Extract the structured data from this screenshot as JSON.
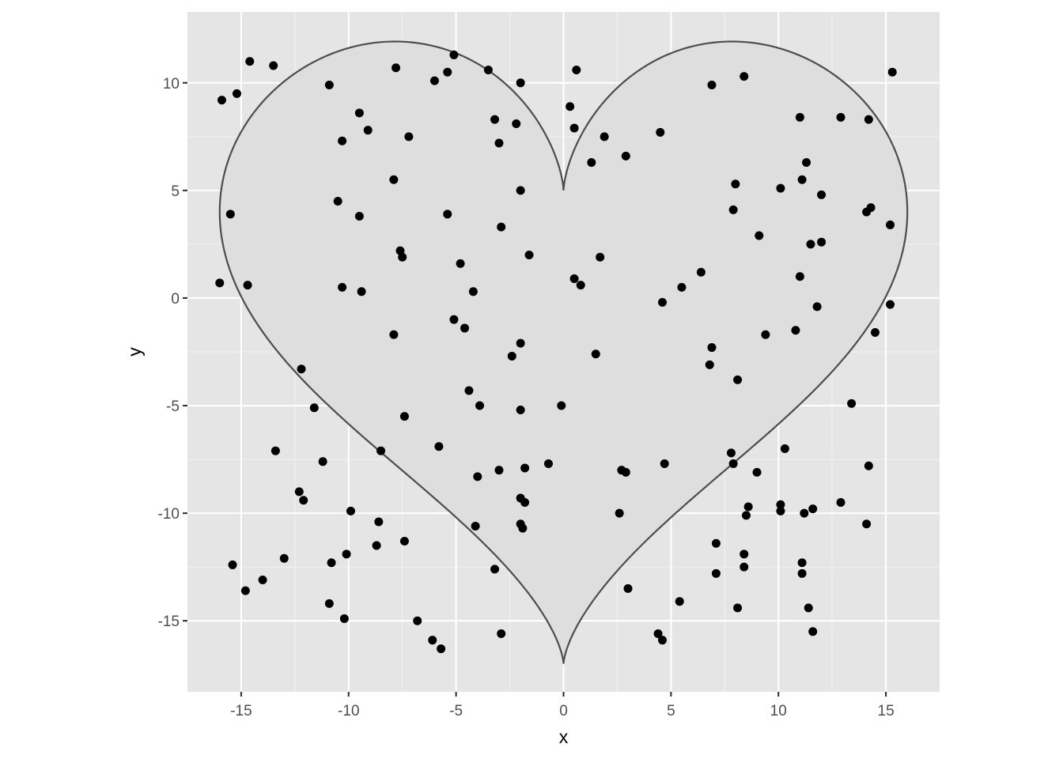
{
  "chart_data": {
    "type": "scatter",
    "title": "",
    "xlabel": "x",
    "ylabel": "y",
    "xlim": [
      -17.5,
      17.5
    ],
    "ylim": [
      -18.3,
      13.3
    ],
    "x_ticks": [
      -15,
      -10,
      -5,
      0,
      5,
      10,
      15
    ],
    "x_tick_labels": [
      "-15",
      "-10",
      "-5",
      "0",
      "5",
      "10",
      "15"
    ],
    "y_ticks": [
      -15,
      -10,
      -5,
      0,
      5,
      10
    ],
    "y_tick_labels": [
      "-15",
      "-10",
      "-5",
      "0",
      "5",
      "10"
    ],
    "grid": true,
    "legend": "none",
    "colors": {
      "panel": "#e5e5e5",
      "grid": "#ffffff",
      "heart_fill": "#dedede",
      "heart_outline": "#4d4d4d",
      "points": "#000000"
    },
    "overlay": {
      "type": "polygon",
      "shape": "heart",
      "equation": "x = 16 sin^3(t); y = 13 cos(t) - 5 cos(2t) - 2 cos(3t) - cos(4t)"
    },
    "points": [
      [
        -15.9,
        9.2
      ],
      [
        -15.2,
        9.5
      ],
      [
        -14.6,
        11.0
      ],
      [
        -13.5,
        10.8
      ],
      [
        -10.9,
        9.9
      ],
      [
        -7.8,
        10.7
      ],
      [
        -6.0,
        10.1
      ],
      [
        -5.4,
        10.5
      ],
      [
        -5.1,
        11.3
      ],
      [
        -3.5,
        10.6
      ],
      [
        -2.0,
        10.0
      ],
      [
        0.6,
        10.6
      ],
      [
        6.9,
        9.9
      ],
      [
        8.4,
        10.3
      ],
      [
        15.3,
        10.5
      ],
      [
        -9.5,
        8.6
      ],
      [
        -9.1,
        7.8
      ],
      [
        -10.3,
        7.3
      ],
      [
        -7.2,
        7.5
      ],
      [
        -3.2,
        8.3
      ],
      [
        -2.2,
        8.1
      ],
      [
        -3.0,
        7.2
      ],
      [
        0.3,
        8.9
      ],
      [
        0.5,
        7.9
      ],
      [
        1.9,
        7.5
      ],
      [
        4.5,
        7.7
      ],
      [
        11.0,
        8.4
      ],
      [
        12.9,
        8.4
      ],
      [
        14.2,
        8.3
      ],
      [
        1.3,
        6.3
      ],
      [
        2.9,
        6.6
      ],
      [
        11.3,
        6.3
      ],
      [
        -7.9,
        5.5
      ],
      [
        -2.0,
        5.0
      ],
      [
        8.0,
        5.3
      ],
      [
        10.1,
        5.1
      ],
      [
        11.1,
        5.5
      ],
      [
        12.0,
        4.8
      ],
      [
        -10.5,
        4.5
      ],
      [
        -15.5,
        3.9
      ],
      [
        -9.5,
        3.8
      ],
      [
        -5.4,
        3.9
      ],
      [
        7.9,
        4.1
      ],
      [
        14.1,
        4.0
      ],
      [
        14.3,
        4.2
      ],
      [
        -2.9,
        3.3
      ],
      [
        15.2,
        3.4
      ],
      [
        9.1,
        2.9
      ],
      [
        11.5,
        2.5
      ],
      [
        12.0,
        2.6
      ],
      [
        -7.6,
        2.2
      ],
      [
        -7.5,
        1.9
      ],
      [
        -4.8,
        1.6
      ],
      [
        -1.6,
        2.0
      ],
      [
        1.7,
        1.9
      ],
      [
        6.4,
        1.2
      ],
      [
        -16.0,
        0.7
      ],
      [
        -14.7,
        0.6
      ],
      [
        -10.3,
        0.5
      ],
      [
        -9.4,
        0.3
      ],
      [
        -4.2,
        0.3
      ],
      [
        0.5,
        0.9
      ],
      [
        0.8,
        0.6
      ],
      [
        5.5,
        0.5
      ],
      [
        11.0,
        1.0
      ],
      [
        4.6,
        -0.2
      ],
      [
        11.8,
        -0.4
      ],
      [
        15.2,
        -0.3
      ],
      [
        -7.9,
        -1.7
      ],
      [
        -5.1,
        -1.0
      ],
      [
        -4.6,
        -1.4
      ],
      [
        -2.0,
        -2.1
      ],
      [
        -2.4,
        -2.7
      ],
      [
        1.5,
        -2.6
      ],
      [
        9.4,
        -1.7
      ],
      [
        10.8,
        -1.5
      ],
      [
        14.5,
        -1.6
      ],
      [
        6.9,
        -2.3
      ],
      [
        6.8,
        -3.1
      ],
      [
        -12.2,
        -3.3
      ],
      [
        8.1,
        -3.8
      ],
      [
        -4.4,
        -4.3
      ],
      [
        -11.6,
        -5.1
      ],
      [
        -3.9,
        -5.0
      ],
      [
        -2.0,
        -5.2
      ],
      [
        -0.1,
        -5.0
      ],
      [
        -7.4,
        -5.5
      ],
      [
        13.4,
        -4.9
      ],
      [
        -13.4,
        -7.1
      ],
      [
        -8.5,
        -7.1
      ],
      [
        -5.8,
        -6.9
      ],
      [
        7.8,
        -7.2
      ],
      [
        10.3,
        -7.0
      ],
      [
        -11.2,
        -7.6
      ],
      [
        -0.7,
        -7.7
      ],
      [
        4.7,
        -7.7
      ],
      [
        7.9,
        -7.7
      ],
      [
        -4.0,
        -8.3
      ],
      [
        -3.0,
        -8.0
      ],
      [
        -1.8,
        -7.9
      ],
      [
        2.7,
        -8.0
      ],
      [
        2.9,
        -8.1
      ],
      [
        9.0,
        -8.1
      ],
      [
        14.2,
        -7.8
      ],
      [
        -12.3,
        -9.0
      ],
      [
        -12.1,
        -9.4
      ],
      [
        -2.0,
        -9.3
      ],
      [
        -1.8,
        -9.5
      ],
      [
        8.6,
        -9.7
      ],
      [
        10.1,
        -9.6
      ],
      [
        11.6,
        -9.8
      ],
      [
        12.9,
        -9.5
      ],
      [
        -9.9,
        -9.9
      ],
      [
        2.6,
        -10.0
      ],
      [
        8.5,
        -10.1
      ],
      [
        10.1,
        -9.9
      ],
      [
        11.2,
        -10.0
      ],
      [
        -8.6,
        -10.4
      ],
      [
        -4.1,
        -10.6
      ],
      [
        -2.0,
        -10.5
      ],
      [
        -1.9,
        -10.7
      ],
      [
        14.1,
        -10.5
      ],
      [
        -7.4,
        -11.3
      ],
      [
        -8.7,
        -11.5
      ],
      [
        7.1,
        -11.4
      ],
      [
        -10.1,
        -11.9
      ],
      [
        8.4,
        -11.9
      ],
      [
        -13.0,
        -12.1
      ],
      [
        -15.4,
        -12.4
      ],
      [
        -10.8,
        -12.3
      ],
      [
        -3.2,
        -12.6
      ],
      [
        8.4,
        -12.5
      ],
      [
        11.1,
        -12.3
      ],
      [
        11.1,
        -12.8
      ],
      [
        7.1,
        -12.8
      ],
      [
        -14.0,
        -13.1
      ],
      [
        -14.8,
        -13.6
      ],
      [
        3.0,
        -13.5
      ],
      [
        -10.9,
        -14.2
      ],
      [
        5.4,
        -14.1
      ],
      [
        8.1,
        -14.4
      ],
      [
        11.4,
        -14.4
      ],
      [
        -10.2,
        -14.9
      ],
      [
        -6.8,
        -15.0
      ],
      [
        -2.9,
        -15.6
      ],
      [
        11.6,
        -15.5
      ],
      [
        -6.1,
        -15.9
      ],
      [
        -5.7,
        -16.3
      ],
      [
        4.4,
        -15.6
      ],
      [
        4.6,
        -15.9
      ]
    ]
  }
}
